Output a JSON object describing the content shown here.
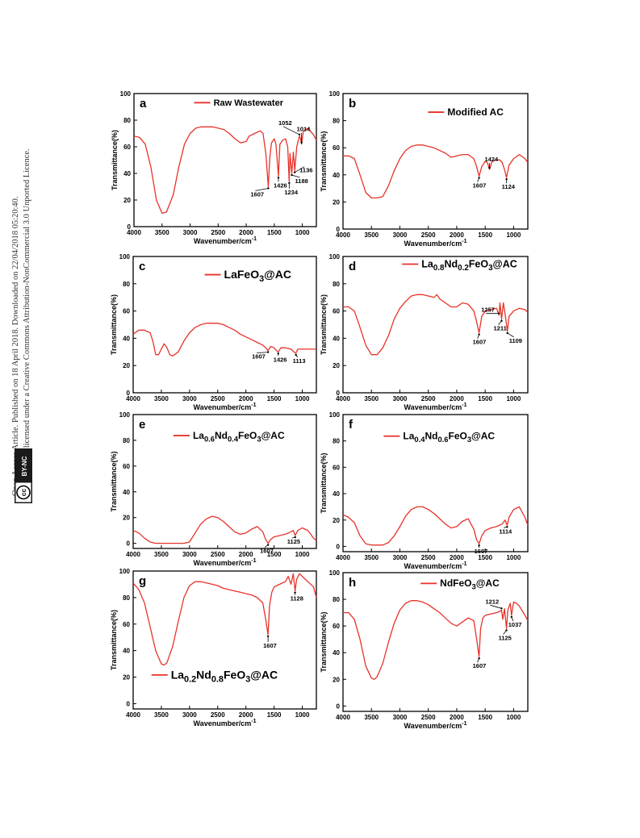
{
  "side_note": {
    "line1": "Open Access Article. Published on 18 April 2018. Downloaded on 22/04/2018 05:20:40.",
    "line2": "This article is licensed under a Creative Commons Attribution-NonCommercial 3.0 Unported Licence.",
    "badge_cc": "cc",
    "badge_text": "BY-NC"
  },
  "colors": {
    "series": "#e8322a",
    "axis": "#000000"
  },
  "chart_data": [
    {
      "type": "line",
      "panel": "a",
      "legend": "Raw Wastewater",
      "xlabel": "Wavenumber/cm",
      "xlabel_sup": "-1",
      "ylabel": "Transmittance(%)",
      "xlim": [
        4000,
        750
      ],
      "ylim": [
        0,
        100
      ],
      "xticks": [
        4000,
        3500,
        3000,
        2500,
        2000,
        1500,
        1000
      ],
      "yticks": [
        0,
        20,
        40,
        60,
        80,
        100
      ],
      "series": [
        {
          "x": [
            4000,
            3900,
            3800,
            3700,
            3600,
            3500,
            3420,
            3300,
            3200,
            3100,
            3000,
            2900,
            2800,
            2700,
            2600,
            2500,
            2400,
            2300,
            2200,
            2100,
            2000,
            1950,
            1850,
            1750,
            1700,
            1650,
            1607,
            1580,
            1550,
            1500,
            1470,
            1426,
            1400,
            1350,
            1300,
            1260,
            1234,
            1220,
            1188,
            1160,
            1136,
            1100,
            1052,
            1030,
            1014,
            980,
            900,
            800,
            750
          ],
          "y": [
            68,
            67,
            62,
            45,
            20,
            10,
            11,
            24,
            45,
            62,
            70,
            74,
            75,
            75,
            75,
            74,
            73,
            70,
            66,
            63,
            64,
            68,
            70,
            72,
            70,
            55,
            30,
            52,
            63,
            66,
            62,
            38,
            62,
            65,
            66,
            60,
            34,
            55,
            40,
            56,
            42,
            60,
            68,
            66,
            62,
            72,
            74,
            69,
            65
          ]
        }
      ],
      "annotations": [
        {
          "label": "1607",
          "x": 1607,
          "y": 30
        },
        {
          "label": "1426",
          "x": 1426,
          "y": 38
        },
        {
          "label": "1234",
          "x": 1234,
          "y": 34
        },
        {
          "label": "1188",
          "x": 1188,
          "y": 40
        },
        {
          "label": "1136",
          "x": 1136,
          "y": 42
        },
        {
          "label": "1052",
          "x": 1052,
          "y": 68
        },
        {
          "label": "1014",
          "x": 1014,
          "y": 62
        }
      ]
    },
    {
      "type": "line",
      "panel": "b",
      "legend": "Modified AC",
      "xlabel": "Wavenumber/cm",
      "xlabel_sup": "-1",
      "ylabel": "Transmittance(%)",
      "xlim": [
        4000,
        750
      ],
      "ylim": [
        0,
        100
      ],
      "xticks": [
        4000,
        3500,
        3000,
        2500,
        2000,
        1500,
        1000
      ],
      "yticks": [
        0,
        20,
        40,
        60,
        80,
        100
      ],
      "series": [
        {
          "x": [
            4000,
            3900,
            3800,
            3700,
            3600,
            3500,
            3400,
            3300,
            3200,
            3100,
            3000,
            2900,
            2800,
            2700,
            2600,
            2500,
            2400,
            2300,
            2200,
            2100,
            2000,
            1900,
            1800,
            1700,
            1650,
            1607,
            1560,
            1500,
            1460,
            1424,
            1380,
            1300,
            1240,
            1200,
            1160,
            1124,
            1080,
            1000,
            900,
            800,
            750
          ],
          "y": [
            54,
            54,
            52,
            40,
            27,
            23,
            23,
            24,
            32,
            43,
            52,
            58,
            61,
            62,
            62,
            61,
            60,
            58,
            56,
            53,
            54,
            55,
            55,
            52,
            46,
            39,
            46,
            50,
            49,
            44,
            50,
            51,
            51,
            49,
            44,
            38,
            47,
            52,
            55,
            52,
            49
          ]
        }
      ],
      "annotations": [
        {
          "label": "1607",
          "x": 1607,
          "y": 39
        },
        {
          "label": "1424",
          "x": 1424,
          "y": 44
        },
        {
          "label": "1124",
          "x": 1124,
          "y": 38
        }
      ]
    },
    {
      "type": "line",
      "panel": "c",
      "legend": "LaFeO3@AC",
      "xlabel": "Wavenumber/cm",
      "xlabel_sup": "-1",
      "ylabel": "Transmittance(%)",
      "xlim": [
        4000,
        750
      ],
      "ylim": [
        0,
        100
      ],
      "xticks": [
        4000,
        3500,
        3000,
        2500,
        2000,
        1500,
        1000
      ],
      "yticks": [
        0,
        20,
        40,
        60,
        80,
        100
      ],
      "series": [
        {
          "x": [
            4000,
            3900,
            3800,
            3700,
            3650,
            3600,
            3550,
            3500,
            3450,
            3400,
            3350,
            3300,
            3200,
            3100,
            3000,
            2900,
            2800,
            2700,
            2600,
            2500,
            2400,
            2300,
            2200,
            2100,
            2000,
            1900,
            1800,
            1700,
            1650,
            1607,
            1560,
            1500,
            1460,
            1426,
            1380,
            1300,
            1200,
            1150,
            1113,
            1080,
            1000,
            900,
            800,
            750
          ],
          "y": [
            43,
            46,
            46,
            44,
            38,
            28,
            28,
            32,
            36,
            33,
            28,
            27,
            30,
            38,
            44,
            48,
            50,
            51,
            51,
            51,
            50,
            48,
            46,
            43,
            41,
            39,
            37,
            35,
            33,
            31,
            34,
            33,
            31,
            30,
            33,
            33,
            32,
            30,
            29,
            32,
            32,
            32,
            32,
            32
          ]
        }
      ],
      "annotations": [
        {
          "label": "1607",
          "x": 1607,
          "y": 31
        },
        {
          "label": "1426",
          "x": 1426,
          "y": 30
        },
        {
          "label": "1113",
          "x": 1113,
          "y": 29
        }
      ]
    },
    {
      "type": "line",
      "panel": "d",
      "legend": "La0.8Nd0.2FeO3@AC",
      "xlabel": "Wavenumber/cm",
      "xlabel_sup": "-1",
      "ylabel": "Transmittance(%)",
      "xlim": [
        4000,
        750
      ],
      "ylim": [
        0,
        100
      ],
      "xticks": [
        4000,
        3500,
        3000,
        2500,
        2000,
        1500,
        1000
      ],
      "yticks": [
        0,
        20,
        40,
        60,
        80,
        100
      ],
      "series": [
        {
          "x": [
            4000,
            3900,
            3800,
            3700,
            3600,
            3500,
            3400,
            3300,
            3200,
            3100,
            3000,
            2900,
            2800,
            2700,
            2600,
            2500,
            2400,
            2350,
            2300,
            2200,
            2100,
            2000,
            1900,
            1800,
            1700,
            1650,
            1607,
            1560,
            1500,
            1400,
            1300,
            1257,
            1240,
            1211,
            1180,
            1150,
            1109,
            1080,
            1000,
            900,
            800,
            750
          ],
          "y": [
            63,
            63,
            60,
            48,
            35,
            28,
            28,
            33,
            42,
            54,
            62,
            67,
            71,
            72,
            72,
            71,
            70,
            72,
            69,
            66,
            63,
            63,
            66,
            65,
            60,
            52,
            44,
            56,
            60,
            61,
            62,
            57,
            66,
            54,
            66,
            58,
            45,
            56,
            60,
            62,
            61,
            59
          ]
        }
      ],
      "annotations": [
        {
          "label": "1607",
          "x": 1607,
          "y": 44
        },
        {
          "label": "1257",
          "x": 1257,
          "y": 57
        },
        {
          "label": "1211",
          "x": 1211,
          "y": 54
        },
        {
          "label": "1109",
          "x": 1109,
          "y": 45
        }
      ]
    },
    {
      "type": "line",
      "panel": "e",
      "legend": "La0.6Nd0.4FeO3@AC",
      "xlabel": "Wavenumber/cm",
      "xlabel_sup": "-1",
      "ylabel": "Transmittance(%)",
      "xlim": [
        4000,
        750
      ],
      "ylim": [
        -4,
        100
      ],
      "xticks": [
        4000,
        3500,
        3000,
        2500,
        2000,
        1500,
        1000
      ],
      "yticks": [
        0,
        20,
        40,
        60,
        80,
        100
      ],
      "series": [
        {
          "x": [
            4000,
            3900,
            3800,
            3700,
            3600,
            3500,
            3400,
            3300,
            3200,
            3100,
            3000,
            2900,
            2800,
            2700,
            2600,
            2500,
            2400,
            2300,
            2200,
            2100,
            2000,
            1900,
            1800,
            1700,
            1650,
            1607,
            1560,
            1500,
            1400,
            1300,
            1200,
            1160,
            1125,
            1080,
            1000,
            900,
            800,
            750
          ],
          "y": [
            10,
            8,
            4,
            1,
            0,
            0,
            0,
            0,
            0,
            0,
            1,
            8,
            15,
            19,
            21,
            20,
            17,
            13,
            9,
            7,
            8,
            11,
            13,
            9,
            3,
            0,
            3,
            5,
            6,
            7,
            9,
            10,
            6,
            10,
            12,
            10,
            4,
            2
          ]
        }
      ],
      "annotations": [
        {
          "label": "1607",
          "x": 1607,
          "y": 0
        },
        {
          "label": "1125",
          "x": 1125,
          "y": 6
        }
      ]
    },
    {
      "type": "line",
      "panel": "f",
      "legend": "La0.4Nd0.6FeO3@AC",
      "xlabel": "Wavenumber/cm",
      "xlabel_sup": "-1",
      "ylabel": "Transmittance(%)",
      "xlim": [
        4000,
        750
      ],
      "ylim": [
        -4,
        100
      ],
      "xticks": [
        4000,
        3500,
        3000,
        2500,
        2000,
        1500,
        1000
      ],
      "yticks": [
        0,
        20,
        40,
        60,
        80,
        100
      ],
      "series": [
        {
          "x": [
            4000,
            3900,
            3800,
            3700,
            3600,
            3500,
            3400,
            3300,
            3200,
            3100,
            3000,
            2900,
            2800,
            2700,
            2600,
            2500,
            2400,
            2300,
            2200,
            2100,
            2000,
            1900,
            1800,
            1700,
            1650,
            1607,
            1560,
            1500,
            1400,
            1300,
            1200,
            1150,
            1114,
            1080,
            1000,
            900,
            800,
            750
          ],
          "y": [
            24,
            22,
            18,
            8,
            2,
            1,
            1,
            1,
            3,
            8,
            15,
            23,
            28,
            30,
            30,
            28,
            25,
            21,
            17,
            14,
            15,
            19,
            21,
            13,
            5,
            2,
            8,
            12,
            14,
            15,
            17,
            20,
            16,
            22,
            28,
            30,
            22,
            16
          ]
        }
      ],
      "annotations": [
        {
          "label": "1607",
          "x": 1607,
          "y": 2
        },
        {
          "label": "1114",
          "x": 1114,
          "y": 16
        }
      ]
    },
    {
      "type": "line",
      "panel": "g",
      "legend": "La0.2Nd0.8FeO3@AC",
      "xlabel": "Wavenumber/cm",
      "xlabel_sup": "-1",
      "ylabel": "Transmittance(%)",
      "xlim": [
        4000,
        750
      ],
      "ylim": [
        -4,
        100
      ],
      "xticks": [
        4000,
        3500,
        3000,
        2500,
        2000,
        1500,
        1000
      ],
      "yticks": [
        0,
        20,
        40,
        60,
        80,
        100
      ],
      "series": [
        {
          "x": [
            4000,
            3900,
            3800,
            3700,
            3600,
            3500,
            3450,
            3400,
            3300,
            3200,
            3100,
            3000,
            2900,
            2800,
            2700,
            2600,
            2500,
            2400,
            2300,
            2200,
            2100,
            2000,
            1900,
            1800,
            1700,
            1650,
            1607,
            1580,
            1540,
            1500,
            1400,
            1300,
            1250,
            1200,
            1160,
            1128,
            1100,
            1050,
            1000,
            900,
            800,
            750
          ],
          "y": [
            91,
            86,
            76,
            58,
            40,
            30,
            29,
            31,
            43,
            62,
            80,
            89,
            92,
            92,
            91,
            90,
            89,
            87,
            86,
            85,
            84,
            83,
            82,
            80,
            76,
            64,
            52,
            74,
            84,
            88,
            90,
            92,
            96,
            90,
            98,
            85,
            94,
            98,
            96,
            92,
            88,
            80
          ]
        }
      ],
      "annotations": [
        {
          "label": "1607",
          "x": 1607,
          "y": 52
        },
        {
          "label": "1128",
          "x": 1128,
          "y": 85
        }
      ]
    },
    {
      "type": "line",
      "panel": "h",
      "legend": "NdFeO3@AC",
      "xlabel": "Wavenumber/cm",
      "xlabel_sup": "-1",
      "ylabel": "Transmittance(%)",
      "xlim": [
        4000,
        750
      ],
      "ylim": [
        -4,
        100
      ],
      "xticks": [
        4000,
        3500,
        3000,
        2500,
        2000,
        1500,
        1000
      ],
      "yticks": [
        0,
        20,
        40,
        60,
        80,
        100
      ],
      "series": [
        {
          "x": [
            4000,
            3900,
            3800,
            3700,
            3600,
            3500,
            3450,
            3400,
            3300,
            3200,
            3100,
            3000,
            2900,
            2800,
            2700,
            2600,
            2500,
            2400,
            2300,
            2200,
            2100,
            2000,
            1900,
            1800,
            1700,
            1650,
            1607,
            1580,
            1540,
            1500,
            1400,
            1300,
            1240,
            1212,
            1190,
            1160,
            1125,
            1100,
            1060,
            1037,
            1000,
            950,
            900,
            800,
            750
          ],
          "y": [
            70,
            70,
            65,
            50,
            30,
            21,
            20,
            22,
            32,
            48,
            62,
            72,
            77,
            79,
            79,
            78,
            76,
            73,
            70,
            66,
            62,
            60,
            63,
            66,
            64,
            50,
            37,
            58,
            66,
            68,
            69,
            70,
            71,
            72,
            65,
            73,
            58,
            72,
            77,
            68,
            78,
            77,
            75,
            68,
            64
          ]
        }
      ],
      "annotations": [
        {
          "label": "1607",
          "x": 1607,
          "y": 37
        },
        {
          "label": "1212",
          "x": 1212,
          "y": 72
        },
        {
          "label": "1125",
          "x": 1125,
          "y": 58
        },
        {
          "label": "1037",
          "x": 1037,
          "y": 68
        }
      ]
    }
  ]
}
